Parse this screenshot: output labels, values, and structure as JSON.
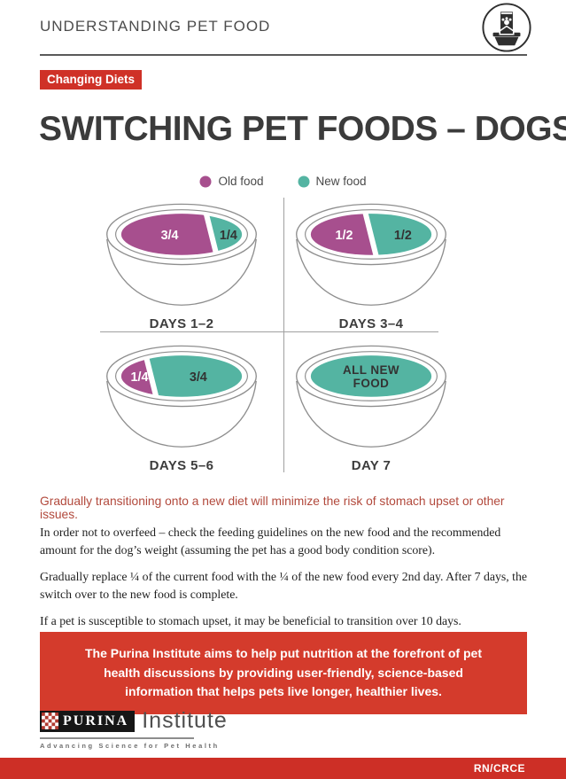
{
  "header": {
    "title": "UNDERSTANDING PET FOOD",
    "icon": "pet-food-bag-and-bowl"
  },
  "tag": {
    "label": "Changing Diets"
  },
  "page_title": "SWITCHING PET FOODS – DOGS",
  "legend": {
    "old": {
      "label": "Old food",
      "color": "#a74f8e"
    },
    "new": {
      "label": "New food",
      "color": "#54b4a2"
    }
  },
  "bowls": [
    {
      "caption": "DAYS 1–2",
      "fractions": [
        0.75,
        0.25
      ],
      "segments": [
        {
          "label": "3/4",
          "food": "old"
        },
        {
          "label": "1/4",
          "food": "new"
        }
      ]
    },
    {
      "caption": "DAYS 3–4",
      "fractions": [
        0.5,
        0.5
      ],
      "segments": [
        {
          "label": "1/2",
          "food": "old"
        },
        {
          "label": "1/2",
          "food": "new"
        }
      ]
    },
    {
      "caption": "DAYS 5–6",
      "fractions": [
        0.25,
        0.75
      ],
      "segments": [
        {
          "label": "1/4",
          "food": "old"
        },
        {
          "label": "3/4",
          "food": "new"
        }
      ]
    },
    {
      "caption": "DAY 7",
      "fractions": [
        1
      ],
      "segments": [
        {
          "label": "ALL NEW FOOD",
          "food": "new"
        }
      ]
    }
  ],
  "lead": "Gradually transitioning onto a new diet will minimize the risk of stomach upset or other issues.",
  "paragraphs": [
    "In order not to overfeed – check the feeding guidelines on the new food and the recommended amount for the dog’s weight (assuming the pet has a good body condition score).",
    "Gradually replace ¼ of the current food with the ¼ of the new food every 2nd day. After 7 days, the switch over to the new food is complete.",
    "If a pet is susceptible to stomach upset, it may be beneficial to transition over 10 days."
  ],
  "callout": "The Purina Institute aims to help put nutrition at the forefront of pet health discussions by providing user-friendly, science-based information that helps pets live longer, healthier lives.",
  "logo": {
    "brand": "PURINA",
    "name": "Institute",
    "tagline": "Advancing Science for Pet Health"
  },
  "footer": {
    "code": "RN/CRCE"
  },
  "colors": {
    "old_food": "#a74f8e",
    "new_food": "#54b4a2",
    "red": "#cf3127",
    "lead_text": "#b2493c",
    "label_on_old": "#ffffff",
    "label_on_new": "#333333"
  }
}
